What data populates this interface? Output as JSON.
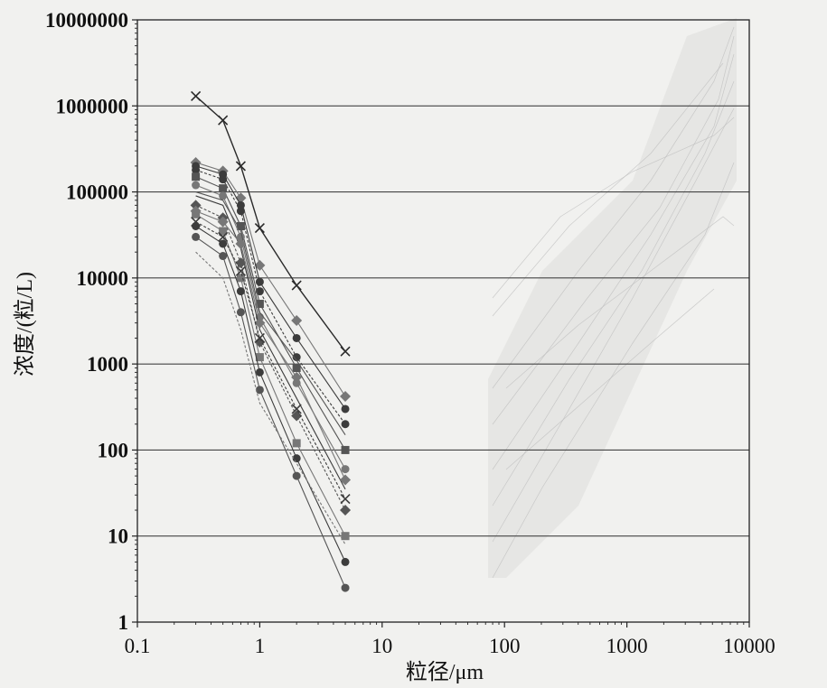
{
  "chart_data": {
    "type": "line",
    "xlabel": "粒径/μm",
    "ylabel": "浓度/(粒/L)",
    "xscale": "log",
    "yscale": "log",
    "xlim": [
      0.1,
      10000
    ],
    "ylim": [
      1,
      10000000
    ],
    "x_ticks": [
      "0.1",
      "1",
      "10",
      "100",
      "1000",
      "10000"
    ],
    "y_ticks": [
      "1",
      "10",
      "100",
      "1000",
      "10000",
      "100000",
      "1000000",
      "10000000"
    ],
    "grid": "horizontal",
    "legend": "none",
    "colors": {
      "series": "#333333",
      "highlight": "#2a2a2a",
      "grid": "#444444",
      "background": "#f1f1ef"
    },
    "series": [
      {
        "x": [
          0.3,
          0.5,
          0.7,
          1.0,
          2.0,
          5.0
        ],
        "values": [
          1300000,
          680000,
          200000,
          38000,
          8200,
          1400
        ],
        "marker": "x"
      },
      {
        "x": [
          0.3,
          0.5,
          0.7,
          1.0,
          2.0,
          5.0
        ],
        "values": [
          220000,
          175000,
          85000,
          14000,
          3200,
          420
        ],
        "marker": "diamond"
      },
      {
        "x": [
          0.3,
          0.5,
          0.7,
          1.0,
          2.0,
          5.0
        ],
        "values": [
          180000,
          140000,
          60000,
          7000,
          1200,
          200
        ],
        "marker": "circle"
      },
      {
        "x": [
          0.3,
          0.5,
          0.7,
          1.0,
          2.0,
          5.0
        ],
        "values": [
          150000,
          110000,
          40000,
          5000,
          900,
          100
        ],
        "marker": "square"
      },
      {
        "x": [
          0.3,
          0.5,
          0.7,
          1.0,
          2.0,
          5.0
        ],
        "values": [
          120000,
          90000,
          30000,
          3500,
          600,
          60
        ],
        "marker": "circle"
      },
      {
        "x": [
          0.3,
          0.5,
          0.7,
          1.0,
          2.0,
          5.0
        ],
        "values": [
          90000,
          70000,
          22000,
          2500,
          400,
          35
        ]
      },
      {
        "x": [
          0.3,
          0.5,
          0.7,
          1.0,
          2.0,
          5.0
        ],
        "values": [
          70000,
          50000,
          15000,
          1800,
          250,
          20
        ],
        "marker": "diamond"
      },
      {
        "x": [
          0.3,
          0.5,
          0.7,
          1.0,
          2.0,
          5.0
        ],
        "values": [
          55000,
          35000,
          10000,
          1200,
          120,
          10
        ],
        "marker": "square"
      },
      {
        "x": [
          0.3,
          0.5,
          0.7,
          1.0,
          2.0,
          5.0
        ],
        "values": [
          40000,
          25000,
          7000,
          800,
          80,
          5
        ],
        "marker": "circle"
      },
      {
        "x": [
          0.3,
          0.5,
          0.7,
          1.0,
          2.0,
          5.0
        ],
        "values": [
          30000,
          18000,
          4000,
          500,
          50,
          2.5
        ],
        "marker": "circle"
      },
      {
        "x": [
          0.3,
          0.5,
          0.7,
          1.0,
          2.0,
          5.0
        ],
        "values": [
          20000,
          10000,
          2500,
          350,
          70,
          8
        ]
      },
      {
        "x": [
          0.3,
          0.5,
          0.7,
          1.0,
          2.0,
          5.0
        ],
        "values": [
          200000,
          160000,
          70000,
          9000,
          2000,
          300
        ],
        "marker": "circle"
      },
      {
        "x": [
          0.3,
          0.5,
          0.7,
          1.0,
          2.0,
          5.0
        ],
        "values": [
          100000,
          80000,
          35000,
          4000,
          1100,
          150
        ]
      },
      {
        "x": [
          0.3,
          0.5,
          0.7,
          1.0,
          2.0,
          5.0
        ],
        "values": [
          60000,
          45000,
          25000,
          3000,
          700,
          45
        ],
        "marker": "diamond"
      },
      {
        "x": [
          0.3,
          0.5,
          0.7,
          1.0,
          2.0,
          5.0
        ],
        "values": [
          45000,
          30000,
          12000,
          2000,
          300,
          27
        ],
        "marker": "x"
      }
    ]
  }
}
